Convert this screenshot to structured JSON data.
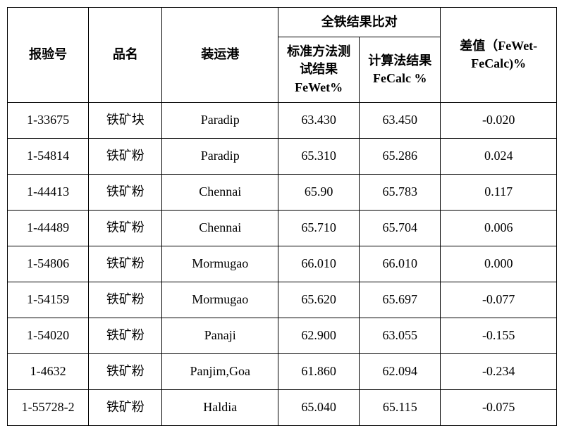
{
  "header": {
    "col0": "报验号",
    "col1": "品名",
    "col2": "装运港",
    "group": "全铁结果比对",
    "col3_l1": "标准方法测",
    "col3_l2": "试结果",
    "col3_l3": "FeWet%",
    "col4_l1": "计算法结果",
    "col4_l2": "FeCalc %",
    "col5_l1": "差值（FeWet-",
    "col5_l2": "FeCalc)%"
  },
  "rows": [
    {
      "c0": "1-33675",
      "c1": "铁矿块",
      "c2": "Paradip",
      "c3": "63.430",
      "c4": "63.450",
      "c5": "-0.020"
    },
    {
      "c0": "1-54814",
      "c1": "铁矿粉",
      "c2": "Paradip",
      "c3": "65.310",
      "c4": "65.286",
      "c5": "0.024"
    },
    {
      "c0": "1-44413",
      "c1": "铁矿粉",
      "c2": "Chennai",
      "c3": "65.90",
      "c4": "65.783",
      "c5": "0.117"
    },
    {
      "c0": "1-44489",
      "c1": "铁矿粉",
      "c2": "Chennai",
      "c3": "65.710",
      "c4": "65.704",
      "c5": "0.006"
    },
    {
      "c0": "1-54806",
      "c1": "铁矿粉",
      "c2": "Mormugao",
      "c3": "66.010",
      "c4": "66.010",
      "c5": "0.000"
    },
    {
      "c0": "1-54159",
      "c1": "铁矿粉",
      "c2": "Mormugao",
      "c3": "65.620",
      "c4": "65.697",
      "c5": "-0.077"
    },
    {
      "c0": "1-54020",
      "c1": "铁矿粉",
      "c2": "Panaji",
      "c3": "62.900",
      "c4": "63.055",
      "c5": "-0.155"
    },
    {
      "c0": "1-4632",
      "c1": "铁矿粉",
      "c2": "Panjim,Goa",
      "c3": "61.860",
      "c4": "62.094",
      "c5": "-0.234"
    },
    {
      "c0": "1-55728-2",
      "c1": "铁矿粉",
      "c2": "Haldia",
      "c3": "65.040",
      "c4": "65.115",
      "c5": "-0.075"
    }
  ]
}
